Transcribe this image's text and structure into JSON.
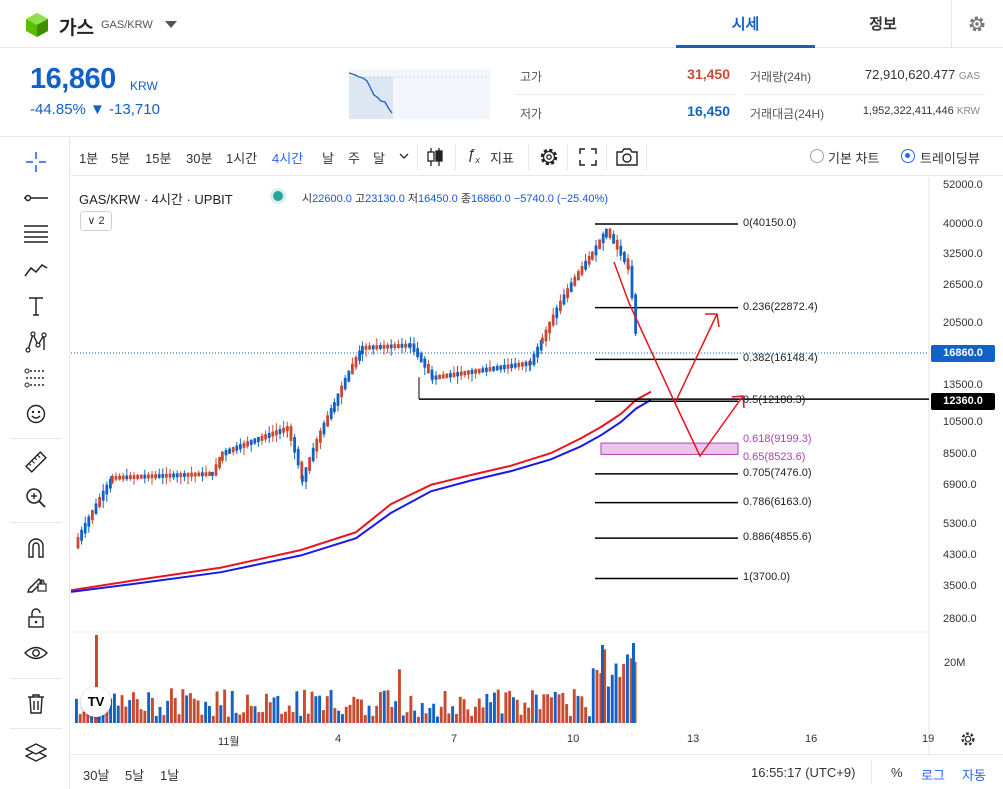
{
  "header": {
    "coin_name": "가스",
    "pair": "GAS/KRW",
    "tabs": [
      "시세",
      "정보"
    ]
  },
  "price": {
    "current": "16,860",
    "unit": "KRW",
    "change_pct": "-44.85%",
    "change_abs": "▼ -13,710"
  },
  "stats": {
    "high_label": "고가",
    "high_value": "31,450",
    "low_label": "저가",
    "low_value": "16,450",
    "volume_label": "거래량(24h)",
    "volume_value": "72,910,620.477",
    "volume_unit": "GAS",
    "amount_label": "거래대금(24H)",
    "amount_value": "1,952,322,411,446",
    "amount_unit": "KRW"
  },
  "toolbar": {
    "intervals": [
      "1분",
      "5분",
      "15분",
      "30분",
      "1시간",
      "4시간",
      "날",
      "주",
      "달"
    ],
    "active_interval": "4시간",
    "indicator_label": "지표",
    "basic_chart_label": "기본 차트",
    "trading_view_label": "트레이딩뷰"
  },
  "chart": {
    "legend_title": "GAS/KRW · 4시간 · UPBIT",
    "ohlc": {
      "open_label": "시",
      "open": "22600.0",
      "high_label": "고",
      "high": "23130.0",
      "low_label": "저",
      "low": "16450.0",
      "close_label": "종",
      "close": "16860.0",
      "change": "−5740.0 (−25.40%)"
    },
    "collapse_label": "∨ 2",
    "current_tag": "16860.0",
    "level_tag": "12360.0",
    "volume_axis_label": "20M",
    "x_ticks": [
      "11월",
      "4",
      "7",
      "10",
      "13",
      "16",
      "19"
    ],
    "y_ticks": [
      "52000.0",
      "40000.0",
      "32500.0",
      "26500.0",
      "20500.0",
      "16860.0",
      "13500.0",
      "10500.0",
      "8500.0",
      "6900.0",
      "5300.0",
      "4300.0",
      "3500.0",
      "2800.0"
    ],
    "fib_levels": [
      {
        "label": "0(40150.0)"
      },
      {
        "label": "0.236(22872.4)"
      },
      {
        "label": "0.382(16148.4)"
      },
      {
        "label": "0.5(12188.3)"
      },
      {
        "label": "0.618(9199.3)"
      },
      {
        "label": "0.65(8523.6)"
      },
      {
        "label": "0.705(7476.0)"
      },
      {
        "label": "0.786(6163.0)"
      },
      {
        "label": "0.886(4855.6)"
      },
      {
        "label": "1(3700.0)"
      }
    ]
  },
  "bottom": {
    "ranges": [
      "30날",
      "5날",
      "1날"
    ],
    "time": "16:55:17 (UTC+9)",
    "pct_label": "%",
    "log_label": "로그",
    "auto_label": "자동"
  },
  "tv_logo_text": "TV",
  "colors": {
    "accent": "#1261c4",
    "up": "#c84a31",
    "down": "#1261c4",
    "ma_red": "#e8141e",
    "ma_blue": "#1a1ae6",
    "fib_zone": "#e7c8ec"
  },
  "chart_data": {
    "type": "candlestick",
    "ylog": true,
    "candles_note_values": "approx closes",
    "current_price": 16860,
    "series": [
      {
        "name": "fib",
        "values": [
          40150,
          22872.4,
          16148.4,
          12188.3,
          9199.3,
          8523.6,
          7476.0,
          6163.0,
          4855.6,
          3700.0
        ]
      }
    ]
  }
}
